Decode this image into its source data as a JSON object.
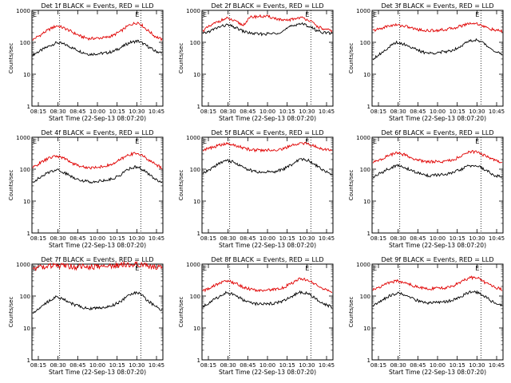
{
  "figure": {
    "title_template": "Det {det} BLACK = Events, RED = LLD",
    "xlabel": "Start Time (22-Sep-13 08:07:20)",
    "ylabel": "Counts/sec",
    "colors": {
      "events": "#000000",
      "lld": "#e00000",
      "axes": "#000000",
      "background": "#ffffff"
    }
  },
  "chart_data": [
    {
      "type": "line",
      "title": "Det 1f BLACK = Events, RED = LLD",
      "xlabel": "Start Time (22-Sep-13 08:07:20)",
      "ylabel": "Counts/sec",
      "x_ticks": [
        "08:15",
        "08:30",
        "08:45",
        "10:00",
        "10:15",
        "10:30",
        "10:45"
      ],
      "y_ticks": [
        "1",
        "10",
        "100",
        "1000"
      ],
      "ylim": [
        1,
        1000
      ],
      "y_scale": "log",
      "marker_label": "E",
      "vertical_lines_at_tick": [
        1,
        5
      ],
      "series": [
        {
          "name": "Events",
          "color": "#000000",
          "values": [
            40,
            55,
            75,
            98,
            85,
            65,
            50,
            42,
            44,
            46,
            52,
            70,
            98,
            110,
            80,
            55,
            45
          ]
        },
        {
          "name": "LLD",
          "color": "#e00000",
          "values": [
            120,
            170,
            250,
            330,
            270,
            200,
            150,
            130,
            135,
            140,
            165,
            230,
            350,
            420,
            260,
            160,
            120
          ]
        }
      ]
    },
    {
      "type": "line",
      "title": "Det 2f BLACK = Events, RED = LLD",
      "xlabel": "Start Time (22-Sep-13 08:07:20)",
      "ylabel": "Counts/sec",
      "x_ticks": [
        "08:15",
        "08:30",
        "08:45",
        "10:00",
        "10:15",
        "10:30",
        "10:45"
      ],
      "y_ticks": [
        "1",
        "10",
        "100",
        "1000"
      ],
      "ylim": [
        1,
        1000
      ],
      "y_scale": "log",
      "marker_label": "E",
      "vertical_lines_at_tick": [
        1,
        5
      ],
      "series": [
        {
          "name": "Events",
          "color": "#000000",
          "values": [
            180,
            230,
            300,
            350,
            290,
            220,
            190,
            180,
            185,
            190,
            230,
            320,
            390,
            330,
            240,
            200,
            190
          ]
        },
        {
          "name": "LLD",
          "color": "#e00000",
          "values": [
            230,
            330,
            460,
            560,
            450,
            340,
            620,
            650,
            640,
            560,
            470,
            520,
            600,
            520,
            330,
            250,
            230
          ]
        }
      ]
    },
    {
      "type": "line",
      "title": "Det 3f BLACK = Events, RED = LLD",
      "xlabel": "Start Time (22-Sep-13 08:07:20)",
      "ylabel": "Counts/sec",
      "x_ticks": [
        "08:15",
        "08:30",
        "08:45",
        "10:00",
        "10:15",
        "10:30",
        "10:45"
      ],
      "y_ticks": [
        "1",
        "10",
        "100",
        "1000"
      ],
      "ylim": [
        1,
        1000
      ],
      "y_scale": "log",
      "marker_label": "E",
      "vertical_lines_at_tick": [
        1,
        5
      ],
      "series": [
        {
          "name": "Events",
          "color": "#000000",
          "values": [
            30,
            45,
            70,
            100,
            85,
            65,
            50,
            45,
            48,
            50,
            58,
            80,
            110,
            120,
            80,
            55,
            40
          ]
        },
        {
          "name": "LLD",
          "color": "#e00000",
          "values": [
            230,
            270,
            330,
            350,
            320,
            270,
            240,
            230,
            240,
            250,
            280,
            330,
            400,
            380,
            290,
            240,
            220
          ]
        }
      ]
    },
    {
      "type": "line",
      "title": "Det 4f BLACK = Events, RED = LLD",
      "xlabel": "Start Time (22-Sep-13 08:07:20)",
      "ylabel": "Counts/sec",
      "x_ticks": [
        "08:15",
        "08:30",
        "08:45",
        "10:00",
        "10:15",
        "10:30",
        "10:45"
      ],
      "y_ticks": [
        "1",
        "10",
        "100",
        "1000"
      ],
      "ylim": [
        1,
        1000
      ],
      "y_scale": "log",
      "marker_label": "E",
      "vertical_lines_at_tick": [
        1,
        5
      ],
      "series": [
        {
          "name": "Events",
          "color": "#000000",
          "values": [
            40,
            55,
            80,
            98,
            75,
            55,
            45,
            40,
            42,
            45,
            50,
            70,
            105,
            120,
            80,
            50,
            40
          ]
        },
        {
          "name": "LLD",
          "color": "#e00000",
          "values": [
            110,
            160,
            220,
            260,
            210,
            150,
            120,
            110,
            115,
            125,
            145,
            210,
            290,
            320,
            220,
            150,
            110
          ]
        }
      ]
    },
    {
      "type": "line",
      "title": "Det 5f BLACK = Events, RED = LLD",
      "xlabel": "Start Time (22-Sep-13 08:07:20)",
      "ylabel": "Counts/sec",
      "x_ticks": [
        "08:15",
        "08:30",
        "08:45",
        "10:00",
        "10:15",
        "10:30",
        "10:45"
      ],
      "y_ticks": [
        "1",
        "10",
        "100",
        "1000"
      ],
      "ylim": [
        1,
        1000
      ],
      "y_scale": "log",
      "marker_label": "E",
      "vertical_lines_at_tick": [
        1,
        5
      ],
      "series": [
        {
          "name": "Events",
          "color": "#000000",
          "values": [
            70,
            100,
            150,
            190,
            160,
            110,
            90,
            80,
            82,
            85,
            100,
            140,
            200,
            190,
            130,
            90,
            70
          ]
        },
        {
          "name": "LLD",
          "color": "#e00000",
          "values": [
            400,
            460,
            560,
            620,
            560,
            460,
            400,
            390,
            395,
            400,
            440,
            540,
            650,
            620,
            500,
            420,
            400
          ]
        }
      ]
    },
    {
      "type": "line",
      "title": "Det 6f BLACK = Events, RED = LLD",
      "xlabel": "Start Time (22-Sep-13 08:07:20)",
      "ylabel": "Counts/sec",
      "x_ticks": [
        "08:15",
        "08:30",
        "08:45",
        "10:00",
        "10:15",
        "10:30",
        "10:45"
      ],
      "y_ticks": [
        "1",
        "10",
        "100",
        "1000"
      ],
      "ylim": [
        1,
        1000
      ],
      "y_scale": "log",
      "marker_label": "E",
      "vertical_lines_at_tick": [
        1,
        5
      ],
      "series": [
        {
          "name": "Events",
          "color": "#000000",
          "values": [
            55,
            75,
            105,
            130,
            110,
            85,
            70,
            62,
            65,
            68,
            78,
            100,
            130,
            125,
            90,
            65,
            55
          ]
        },
        {
          "name": "LLD",
          "color": "#e00000",
          "values": [
            160,
            200,
            270,
            320,
            280,
            210,
            180,
            170,
            172,
            175,
            200,
            260,
            350,
            340,
            250,
            190,
            160
          ]
        }
      ]
    },
    {
      "type": "line",
      "title": "Det 7f BLACK = Events, RED = LLD",
      "xlabel": "Start Time (22-Sep-13 08:07:20)",
      "ylabel": "Counts/sec",
      "x_ticks": [
        "08:15",
        "08:30",
        "08:45",
        "10:00",
        "10:15",
        "10:30",
        "10:45"
      ],
      "y_ticks": [
        "1",
        "10",
        "100",
        "1000"
      ],
      "ylim": [
        1,
        1000
      ],
      "y_scale": "log",
      "marker_label": "E",
      "vertical_lines_at_tick": [
        1,
        5
      ],
      "series": [
        {
          "name": "Events",
          "color": "#000000",
          "values": [
            30,
            45,
            70,
            95,
            75,
            55,
            45,
            40,
            42,
            45,
            52,
            70,
            110,
            130,
            80,
            50,
            35
          ]
        },
        {
          "name": "LLD",
          "color": "#e00000",
          "values": [
            750,
            800,
            850,
            880,
            860,
            830,
            820,
            820,
            840,
            850,
            880,
            950,
            1000,
            980,
            900,
            840,
            800
          ]
        }
      ]
    },
    {
      "type": "line",
      "title": "Det 8f BLACK = Events, RED = LLD",
      "xlabel": "Start Time (22-Sep-13 08:07:20)",
      "ylabel": "Counts/sec",
      "x_ticks": [
        "08:15",
        "08:30",
        "08:45",
        "10:00",
        "10:15",
        "10:30",
        "10:45"
      ],
      "y_ticks": [
        "1",
        "10",
        "100",
        "1000"
      ],
      "ylim": [
        1,
        1000
      ],
      "y_scale": "log",
      "marker_label": "E",
      "vertical_lines_at_tick": [
        1,
        5
      ],
      "series": [
        {
          "name": "Events",
          "color": "#000000",
          "values": [
            45,
            65,
            95,
            130,
            105,
            75,
            60,
            55,
            57,
            60,
            70,
            95,
            130,
            120,
            80,
            55,
            45
          ]
        },
        {
          "name": "LLD",
          "color": "#e00000",
          "values": [
            140,
            180,
            250,
            300,
            250,
            190,
            160,
            150,
            152,
            160,
            185,
            250,
            340,
            320,
            220,
            160,
            140
          ]
        }
      ]
    },
    {
      "type": "line",
      "title": "Det 9f BLACK = Events, RED = LLD",
      "xlabel": "Start Time (22-Sep-13 08:07:20)",
      "ylabel": "Counts/sec",
      "x_ticks": [
        "08:15",
        "08:30",
        "08:45",
        "10:00",
        "10:15",
        "10:30",
        "10:45"
      ],
      "y_ticks": [
        "1",
        "10",
        "100",
        "1000"
      ],
      "ylim": [
        1,
        1000
      ],
      "y_scale": "log",
      "marker_label": "E",
      "vertical_lines_at_tick": [
        1,
        5
      ],
      "series": [
        {
          "name": "Events",
          "color": "#000000",
          "values": [
            50,
            70,
            100,
            125,
            105,
            80,
            65,
            60,
            62,
            65,
            75,
            100,
            135,
            130,
            90,
            60,
            50
          ]
        },
        {
          "name": "LLD",
          "color": "#e00000",
          "values": [
            160,
            200,
            260,
            300,
            260,
            210,
            180,
            170,
            172,
            180,
            210,
            280,
            380,
            360,
            250,
            190,
            160
          ]
        }
      ]
    }
  ]
}
